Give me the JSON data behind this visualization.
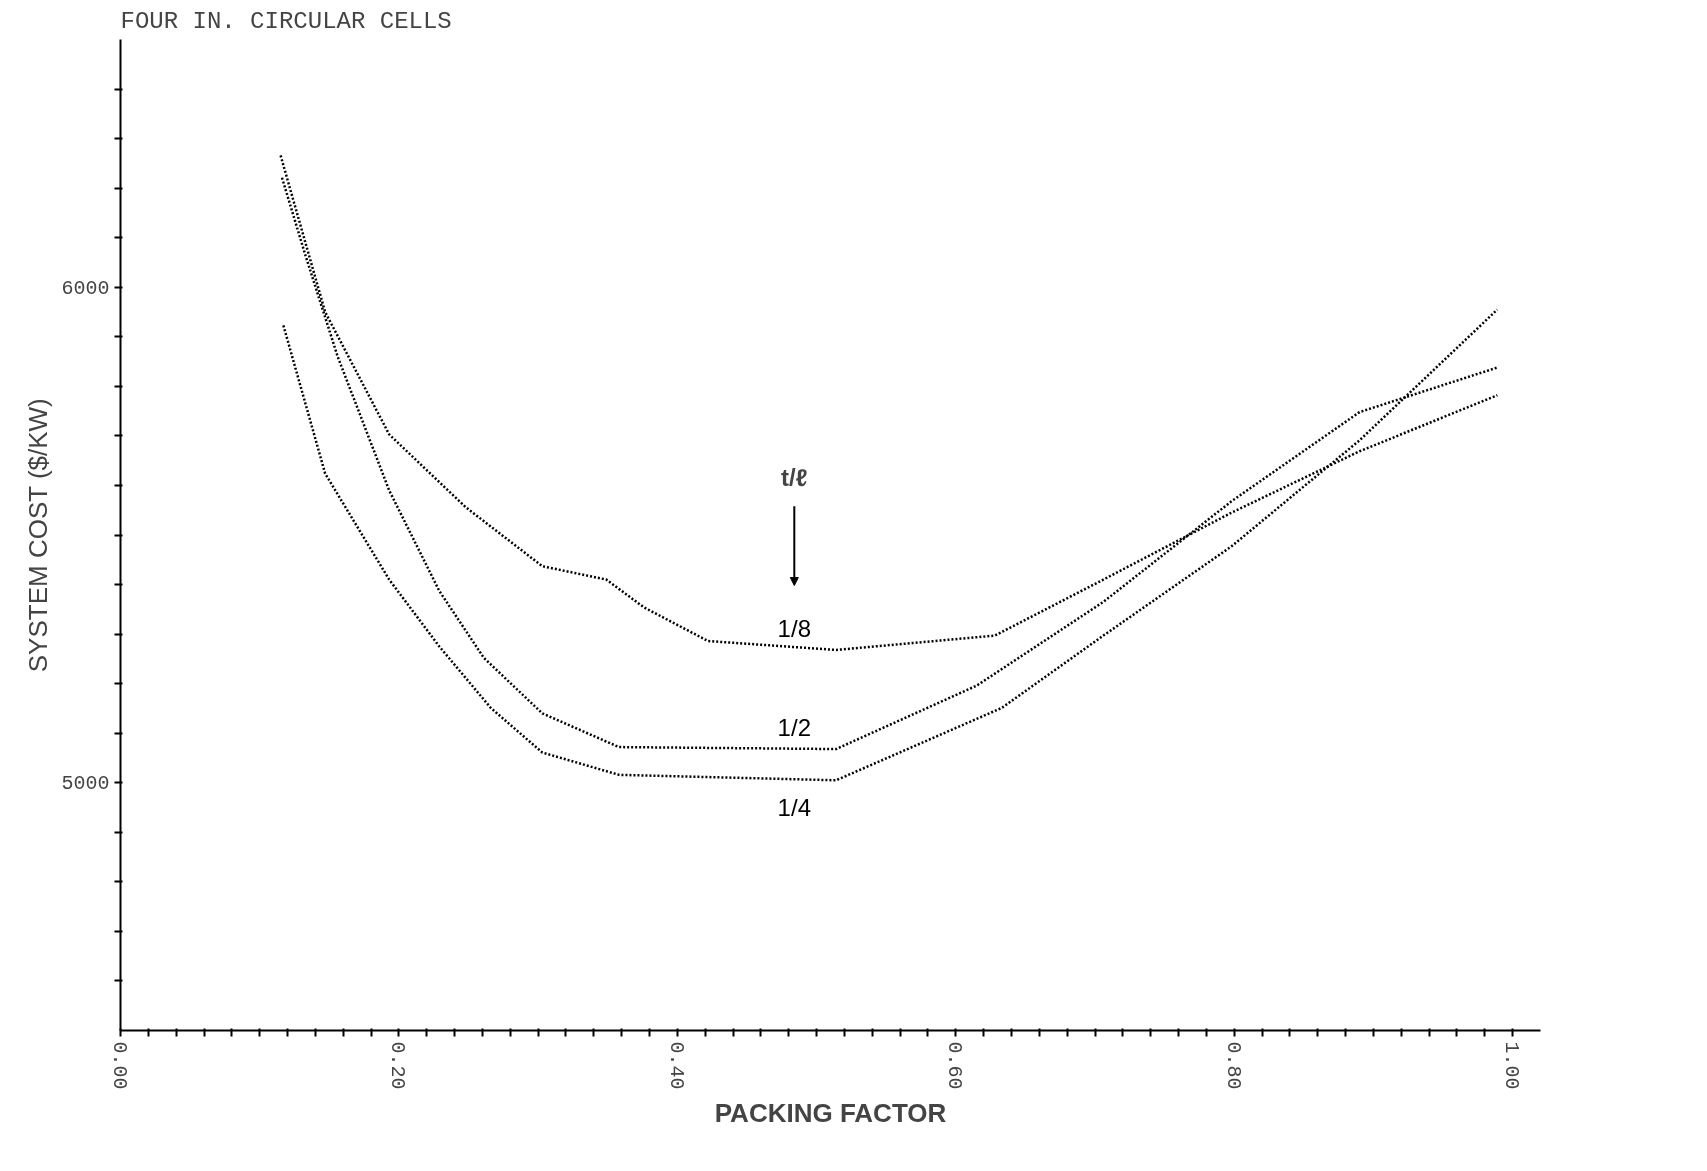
{
  "chart_data": {
    "type": "line",
    "title": "FOUR IN. CIRCULAR CELLS",
    "xlabel": "PACKING FACTOR",
    "ylabel": "SYSTEM COST ($/KW)",
    "legend_title": "t/ℓ",
    "x": [
      0.115,
      0.147,
      0.193,
      0.248,
      0.303,
      0.349,
      0.376,
      0.422,
      0.514,
      0.628,
      0.706,
      0.798,
      0.89,
      0.989
    ],
    "series": [
      {
        "name": "1/8",
        "color": "#000000",
        "values": [
          6266,
          5950,
          5703,
          5556,
          5437,
          5410,
          5354,
          5286,
          5268,
          5297,
          5410,
          5545,
          5669,
          5782
        ]
      },
      {
        "name": "1/2",
        "color": "#000000",
        "x": [
          0.116,
          0.133,
          0.156,
          0.193,
          0.229,
          0.261,
          0.303,
          0.358,
          0.514,
          0.615,
          0.706,
          0.798,
          0.89,
          0.989
        ],
        "values": [
          6221,
          6063,
          5860,
          5590,
          5387,
          5252,
          5140,
          5072,
          5068,
          5196,
          5365,
          5568,
          5748,
          5838
        ]
      },
      {
        "name": "1/4",
        "color": "#000000",
        "x": [
          0.117,
          0.147,
          0.193,
          0.229,
          0.266,
          0.303,
          0.358,
          0.514,
          0.633,
          0.706,
          0.798,
          0.89,
          0.989
        ],
        "values": [
          5923,
          5624,
          5410,
          5275,
          5151,
          5061,
          5016,
          5005,
          5151,
          5297,
          5477,
          5691,
          5955
        ]
      }
    ],
    "xlim": [
      0,
      1.02
    ],
    "ylim": [
      4500,
      6500
    ],
    "xticks": [
      {
        "value": 0.0,
        "label": "0.00"
      },
      {
        "value": 0.02,
        "label": null
      },
      {
        "value": 0.04,
        "label": null
      },
      {
        "value": 0.06,
        "label": null
      },
      {
        "value": 0.08,
        "label": null
      },
      {
        "value": 0.1,
        "label": null
      },
      {
        "value": 0.12,
        "label": null
      },
      {
        "value": 0.14,
        "label": null
      },
      {
        "value": 0.16,
        "label": null
      },
      {
        "value": 0.18,
        "label": null
      },
      {
        "value": 0.2,
        "label": "0.20"
      },
      {
        "value": 0.22,
        "label": null
      },
      {
        "value": 0.24,
        "label": null
      },
      {
        "value": 0.26,
        "label": null
      },
      {
        "value": 0.28,
        "label": null
      },
      {
        "value": 0.3,
        "label": null
      },
      {
        "value": 0.32,
        "label": null
      },
      {
        "value": 0.34,
        "label": null
      },
      {
        "value": 0.36,
        "label": null
      },
      {
        "value": 0.38,
        "label": null
      },
      {
        "value": 0.4,
        "label": "0.40"
      },
      {
        "value": 0.42,
        "label": null
      },
      {
        "value": 0.44,
        "label": null
      },
      {
        "value": 0.46,
        "label": null
      },
      {
        "value": 0.48,
        "label": null
      },
      {
        "value": 0.5,
        "label": null
      },
      {
        "value": 0.52,
        "label": null
      },
      {
        "value": 0.54,
        "label": null
      },
      {
        "value": 0.56,
        "label": null
      },
      {
        "value": 0.58,
        "label": null
      },
      {
        "value": 0.6,
        "label": "0.60"
      },
      {
        "value": 0.62,
        "label": null
      },
      {
        "value": 0.64,
        "label": null
      },
      {
        "value": 0.66,
        "label": null
      },
      {
        "value": 0.68,
        "label": null
      },
      {
        "value": 0.7,
        "label": null
      },
      {
        "value": 0.72,
        "label": null
      },
      {
        "value": 0.74,
        "label": null
      },
      {
        "value": 0.76,
        "label": null
      },
      {
        "value": 0.78,
        "label": null
      },
      {
        "value": 0.8,
        "label": "0.80"
      },
      {
        "value": 0.82,
        "label": null
      },
      {
        "value": 0.84,
        "label": null
      },
      {
        "value": 0.86,
        "label": null
      },
      {
        "value": 0.88,
        "label": null
      },
      {
        "value": 0.9,
        "label": null
      },
      {
        "value": 0.92,
        "label": null
      },
      {
        "value": 0.94,
        "label": null
      },
      {
        "value": 0.96,
        "label": null
      },
      {
        "value": 0.98,
        "label": null
      },
      {
        "value": 1.0,
        "label": "1.00"
      }
    ],
    "yticks": [
      {
        "value": 4600,
        "label": null
      },
      {
        "value": 4700,
        "label": null
      },
      {
        "value": 4800,
        "label": null
      },
      {
        "value": 4900,
        "label": null
      },
      5000,
      {
        "value": 5100,
        "label": null
      },
      {
        "value": 5200,
        "label": null
      },
      {
        "value": 5300,
        "label": null
      },
      {
        "value": 5400,
        "label": null
      },
      {
        "value": 5500,
        "label": null
      },
      {
        "value": 5600,
        "label": null
      },
      {
        "value": 5700,
        "label": null
      },
      {
        "value": 5800,
        "label": null
      },
      {
        "value": 5900,
        "label": null
      },
      6000,
      {
        "value": 6100,
        "label": null
      },
      {
        "value": 6200,
        "label": null
      },
      {
        "value": 6300,
        "label": null
      },
      {
        "value": 6400,
        "label": null
      }
    ],
    "line_style": "dotted",
    "grid": false
  }
}
